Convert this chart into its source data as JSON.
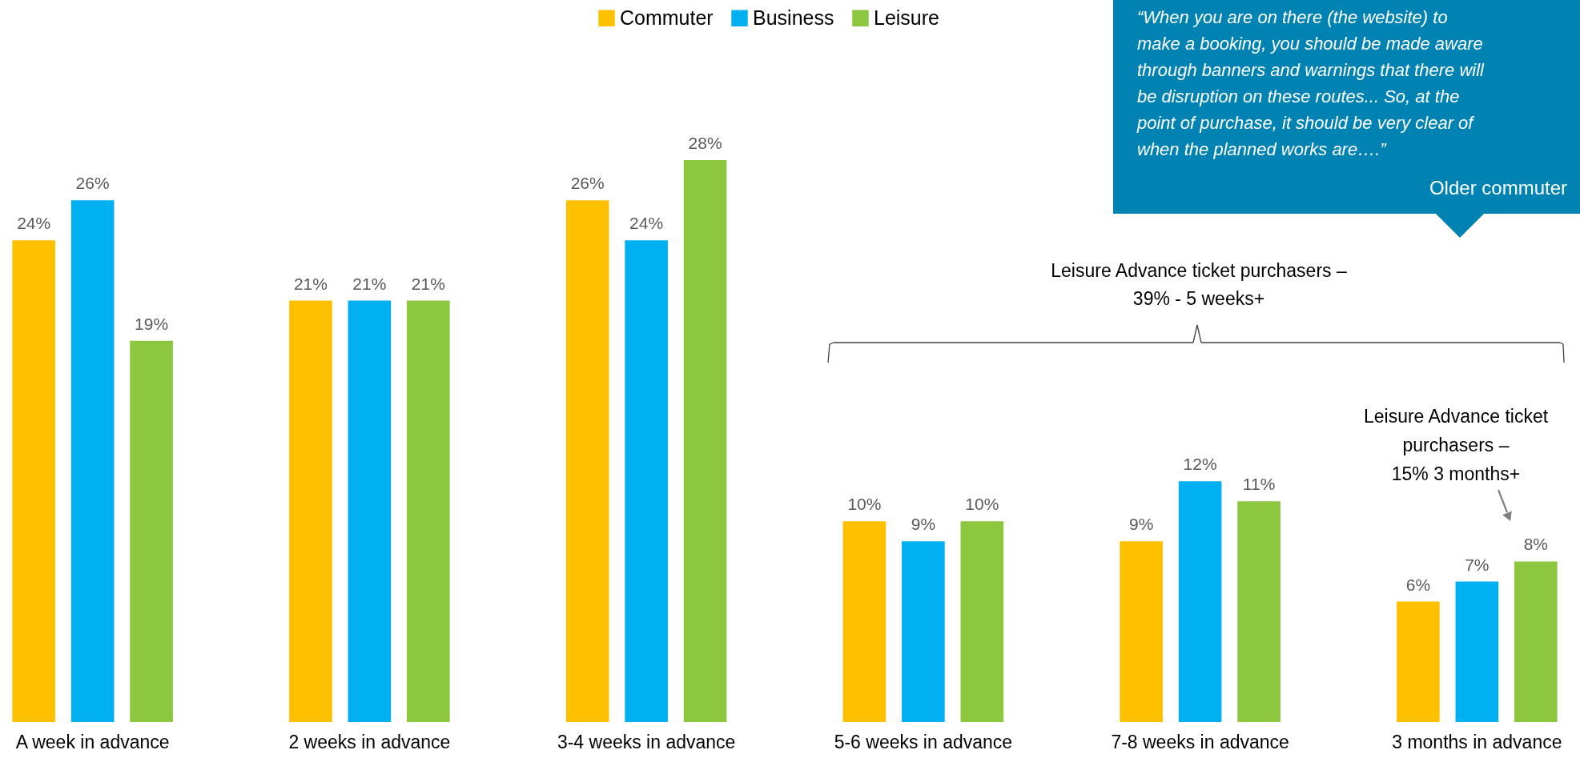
{
  "chart_data": {
    "type": "bar",
    "categories": [
      "A week in advance",
      "2 weeks in advance",
      "3-4 weeks in advance",
      "5-6 weeks in advance",
      "7-8 weeks in advance",
      "3 months in advance"
    ],
    "series": [
      {
        "name": "Commuter",
        "color": "#ffc000",
        "values": [
          24,
          21,
          26,
          10,
          9,
          6
        ],
        "value_labels": [
          "24%",
          "21%",
          "26%",
          "10%",
          "9%",
          "6%"
        ]
      },
      {
        "name": "Business",
        "color": "#00b0f0",
        "values": [
          26,
          21,
          24,
          9,
          12,
          7
        ],
        "value_labels": [
          "26%",
          "21%",
          "24%",
          "9%",
          "12%",
          "7%"
        ]
      },
      {
        "name": "Leisure",
        "color": "#8dc63f",
        "values": [
          19,
          21,
          28,
          10,
          11,
          8
        ],
        "value_labels": [
          "19%",
          "21%",
          "28%",
          "10%",
          "11%",
          "8%"
        ]
      }
    ],
    "legend": "top",
    "grid": false,
    "annotations": [
      "“When you are on there (the website) to\nmake a booking, you should be made aware\nthrough banners and warnings that there will\nbe disruption on these routes... So, at the\npoint of purchase, it should be very clear of\nwhen the planned works are….”",
      "Older commuter",
      "Leisure Advance ticket purchasers –\n39% - 5 weeks+",
      "Leisure Advance ticket\npurchasers –\n15% 3 months+"
    ]
  }
}
